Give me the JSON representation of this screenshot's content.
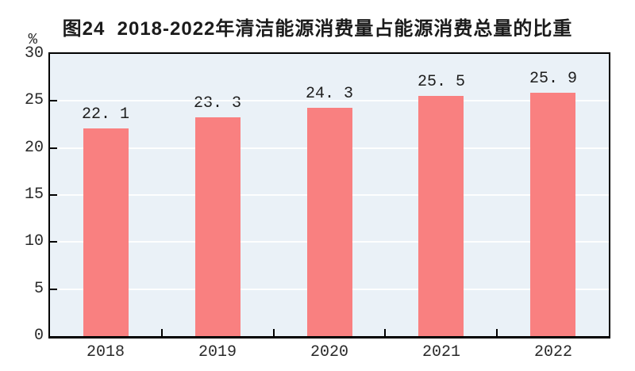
{
  "figure": {
    "title": "图24  2018-2022年清洁能源消费量占能源消费总量的比重",
    "unit_label": "%"
  },
  "colors": {
    "bar": "#F98080",
    "plot_background": "#EAF1F7",
    "gridline": "#FDFEFE",
    "axis": "#000000",
    "title_text": "#1B1B1B",
    "tick_text": "#2A2A2A"
  },
  "chart_data": {
    "type": "bar",
    "title": "图24  2018-2022年清洁能源消费量占能源消费总量的比重",
    "categories": [
      "2018",
      "2019",
      "2020",
      "2021",
      "2022"
    ],
    "values": [
      22.1,
      23.3,
      24.3,
      25.5,
      25.9
    ],
    "value_labels": [
      "22. 1",
      "23. 3",
      "24. 3",
      "25. 5",
      "25. 9"
    ],
    "xlabel": "",
    "ylabel": "%",
    "ylim": [
      0,
      30
    ],
    "yticks": [
      0,
      5,
      10,
      15,
      20,
      25,
      30
    ],
    "grid": "horizontal-white",
    "legend": "none"
  }
}
